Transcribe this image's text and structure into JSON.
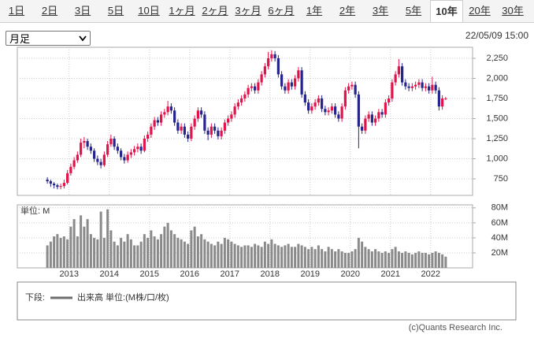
{
  "tabs": [
    "1日",
    "2日",
    "3日",
    "5日",
    "10日",
    "1ヶ月",
    "2ヶ月",
    "3ヶ月",
    "6ヶ月",
    "1年",
    "2年",
    "3年",
    "5年",
    "10年",
    "20年",
    "30年"
  ],
  "active_tab": "10年",
  "interval_select": "月足",
  "timestamp": "22/05/09 15:00",
  "chart_data": [
    {
      "type": "candlestick",
      "categories": [
        null,
        null,
        null,
        null,
        null,
        null,
        null,
        "2013",
        null,
        null,
        null,
        null,
        null,
        null,
        null,
        null,
        null,
        null,
        null,
        "2014",
        null,
        null,
        null,
        null,
        null,
        null,
        null,
        null,
        null,
        null,
        null,
        "2015",
        null,
        null,
        null,
        null,
        null,
        null,
        null,
        null,
        null,
        null,
        null,
        "2016",
        null,
        null,
        null,
        null,
        null,
        null,
        null,
        null,
        null,
        null,
        null,
        "2017",
        null,
        null,
        null,
        null,
        null,
        null,
        null,
        null,
        null,
        null,
        null,
        "2018",
        null,
        null,
        null,
        null,
        null,
        null,
        null,
        null,
        null,
        null,
        null,
        "2019",
        null,
        null,
        null,
        null,
        null,
        null,
        null,
        null,
        null,
        null,
        null,
        "2020",
        null,
        null,
        null,
        null,
        null,
        null,
        null,
        null,
        null,
        null,
        null,
        "2021",
        null,
        null,
        null,
        null,
        null,
        null,
        null,
        null,
        null,
        null,
        null,
        "2022",
        null,
        null,
        null,
        null
      ],
      "open": [
        740,
        720,
        690,
        670,
        650,
        660,
        700,
        820,
        900,
        980,
        1050,
        1200,
        1220,
        1150,
        1100,
        1000,
        960,
        920,
        1050,
        1180,
        1250,
        1150,
        1100,
        1020,
        980,
        1050,
        1080,
        1120,
        1150,
        1100,
        1250,
        1300,
        1400,
        1480,
        1450,
        1550,
        1580,
        1650,
        1600,
        1450,
        1350,
        1400,
        1300,
        1250,
        1400,
        1500,
        1600,
        1550,
        1350,
        1300,
        1400,
        1350,
        1280,
        1350,
        1450,
        1500,
        1550,
        1650,
        1700,
        1750,
        1800,
        1880,
        1900,
        1850,
        1950,
        2050,
        2150,
        2250,
        2300,
        2250,
        2050,
        1900,
        1850,
        1950,
        1900,
        2000,
        2100,
        1800,
        1700,
        1600,
        1650,
        1700,
        1750,
        1620,
        1580,
        1600,
        1650,
        1550,
        1500,
        1650,
        1850,
        1900,
        1920,
        1800,
        1400,
        1350,
        1500,
        1550,
        1450,
        1500,
        1580,
        1550,
        1700,
        1750,
        1950,
        2050,
        2150,
        1950,
        1900,
        1880,
        1900,
        1920,
        1950,
        1880,
        1900,
        1850,
        1920,
        1850,
        1650,
        1750
      ],
      "high": [
        770,
        740,
        710,
        690,
        690,
        740,
        860,
        940,
        1020,
        1090,
        1250,
        1270,
        1250,
        1190,
        1130,
        1040,
        1000,
        1090,
        1220,
        1300,
        1280,
        1190,
        1130,
        1060,
        1090,
        1120,
        1160,
        1190,
        1190,
        1290,
        1340,
        1440,
        1520,
        1520,
        1590,
        1620,
        1720,
        1690,
        1640,
        1490,
        1440,
        1440,
        1340,
        1440,
        1540,
        1640,
        1640,
        1590,
        1390,
        1440,
        1440,
        1390,
        1390,
        1490,
        1540,
        1590,
        1690,
        1740,
        1790,
        1840,
        1920,
        1940,
        1940,
        1990,
        2090,
        2190,
        2330,
        2350,
        2340,
        2290,
        2090,
        1940,
        1990,
        1990,
        2040,
        2140,
        2140,
        1840,
        1740,
        1690,
        1740,
        1790,
        1790,
        1660,
        1640,
        1690,
        1690,
        1590,
        1690,
        1890,
        1940,
        1960,
        1960,
        1840,
        1440,
        1540,
        1590,
        1590,
        1540,
        1620,
        1620,
        1740,
        1790,
        1990,
        2090,
        2240,
        2190,
        1990,
        1940,
        1940,
        1960,
        1990,
        1990,
        1940,
        1940,
        2020,
        1960,
        1890,
        1790,
        1770
      ],
      "low": [
        690,
        650,
        630,
        620,
        620,
        630,
        680,
        790,
        870,
        950,
        1020,
        1130,
        1110,
        1060,
        960,
        920,
        880,
        900,
        1020,
        1150,
        1110,
        1060,
        980,
        940,
        950,
        1010,
        1040,
        1080,
        1060,
        1080,
        1210,
        1260,
        1360,
        1410,
        1410,
        1510,
        1540,
        1560,
        1410,
        1310,
        1310,
        1260,
        1210,
        1220,
        1360,
        1460,
        1510,
        1310,
        1230,
        1260,
        1310,
        1240,
        1240,
        1310,
        1410,
        1460,
        1510,
        1610,
        1660,
        1710,
        1760,
        1840,
        1810,
        1810,
        1910,
        2010,
        2110,
        2210,
        2210,
        2010,
        1860,
        1810,
        1810,
        1860,
        1860,
        1960,
        1760,
        1660,
        1560,
        1560,
        1610,
        1660,
        1580,
        1540,
        1540,
        1560,
        1510,
        1460,
        1460,
        1610,
        1810,
        1860,
        1760,
        1130,
        1310,
        1310,
        1460,
        1410,
        1410,
        1460,
        1510,
        1510,
        1660,
        1710,
        1910,
        2010,
        1910,
        1860,
        1840,
        1840,
        1860,
        1880,
        1840,
        1840,
        1810,
        1810,
        1810,
        1600,
        1610,
        1730
      ],
      "close": [
        720,
        690,
        670,
        650,
        660,
        700,
        820,
        900,
        980,
        1050,
        1200,
        1220,
        1150,
        1100,
        1000,
        960,
        920,
        1050,
        1180,
        1250,
        1150,
        1100,
        1020,
        980,
        1050,
        1080,
        1120,
        1150,
        1100,
        1250,
        1300,
        1400,
        1480,
        1450,
        1550,
        1580,
        1650,
        1600,
        1450,
        1350,
        1400,
        1300,
        1250,
        1400,
        1500,
        1600,
        1550,
        1350,
        1300,
        1400,
        1350,
        1280,
        1350,
        1450,
        1500,
        1550,
        1650,
        1700,
        1750,
        1800,
        1880,
        1900,
        1850,
        1950,
        2050,
        2150,
        2250,
        2300,
        2250,
        2050,
        1900,
        1850,
        1950,
        1900,
        2000,
        2100,
        1800,
        1700,
        1600,
        1650,
        1700,
        1750,
        1620,
        1580,
        1600,
        1650,
        1550,
        1500,
        1650,
        1850,
        1900,
        1920,
        1800,
        1400,
        1350,
        1500,
        1550,
        1450,
        1500,
        1580,
        1550,
        1700,
        1750,
        1950,
        2050,
        2150,
        1950,
        1900,
        1880,
        1900,
        1920,
        1950,
        1880,
        1900,
        1850,
        1920,
        1850,
        1650,
        1750,
        1750
      ],
      "up_color": "#e3124b",
      "down_color": "#24248c",
      "ylim": [
        544,
        2387
      ],
      "yticks": [
        750,
        {
          "value": 1000,
          "label": "1,000"
        },
        {
          "value": 1250,
          "label": "1,250"
        },
        {
          "value": 1500,
          "label": "1,500"
        },
        {
          "value": 1750,
          "label": "1,750"
        },
        {
          "value": 2000,
          "label": "2,000"
        },
        {
          "value": 2250,
          "label": "2,250"
        }
      ],
      "grid": true
    },
    {
      "type": "bar",
      "title": "単位: M",
      "categories": [
        null,
        null,
        null,
        null,
        null,
        null,
        null,
        "2013",
        null,
        null,
        null,
        null,
        null,
        null,
        null,
        null,
        null,
        null,
        null,
        "2014",
        null,
        null,
        null,
        null,
        null,
        null,
        null,
        null,
        null,
        null,
        null,
        "2015",
        null,
        null,
        null,
        null,
        null,
        null,
        null,
        null,
        null,
        null,
        null,
        "2016",
        null,
        null,
        null,
        null,
        null,
        null,
        null,
        null,
        null,
        null,
        null,
        "2017",
        null,
        null,
        null,
        null,
        null,
        null,
        null,
        null,
        null,
        null,
        null,
        "2018",
        null,
        null,
        null,
        null,
        null,
        null,
        null,
        null,
        null,
        null,
        null,
        "2019",
        null,
        null,
        null,
        null,
        null,
        null,
        null,
        null,
        null,
        null,
        null,
        "2020",
        null,
        null,
        null,
        null,
        null,
        null,
        null,
        null,
        null,
        null,
        null,
        "2021",
        null,
        null,
        null,
        null,
        null,
        null,
        null,
        null,
        null,
        null,
        null,
        "2022",
        null,
        null,
        null,
        null
      ],
      "values": [
        30,
        35,
        42,
        45,
        40,
        42,
        38,
        55,
        65,
        42,
        70,
        55,
        65,
        45,
        40,
        38,
        75,
        40,
        78,
        50,
        35,
        30,
        40,
        35,
        45,
        38,
        30,
        30,
        35,
        45,
        40,
        50,
        42,
        38,
        45,
        55,
        60,
        50,
        45,
        40,
        38,
        35,
        32,
        50,
        55,
        42,
        45,
        38,
        35,
        32,
        30,
        35,
        32,
        40,
        38,
        35,
        32,
        30,
        28,
        30,
        30,
        28,
        32,
        30,
        28,
        35,
        32,
        38,
        32,
        30,
        28,
        30,
        32,
        28,
        28,
        32,
        30,
        28,
        25,
        28,
        25,
        30,
        25,
        22,
        28,
        25,
        22,
        25,
        22,
        20,
        20,
        22,
        25,
        40,
        35,
        28,
        25,
        22,
        25,
        22,
        20,
        22,
        20,
        25,
        28,
        22,
        20,
        22,
        20,
        18,
        20,
        22,
        20,
        20,
        18,
        20,
        22,
        20,
        18,
        15
      ],
      "color": "#8a8a8a",
      "ylim": [
        0,
        84
      ],
      "yticks": [
        {
          "value": 20,
          "label": "20M"
        },
        {
          "value": 40,
          "label": "40M"
        },
        {
          "value": 60,
          "label": "60M"
        },
        {
          "value": 80,
          "label": "80M"
        }
      ],
      "grid": true
    }
  ],
  "legend": {
    "label": "下段:",
    "series": "出来高 単位:(M株/口/枚)",
    "color": "#6e6e6e"
  },
  "copyright": "(c)Quants Research Inc."
}
